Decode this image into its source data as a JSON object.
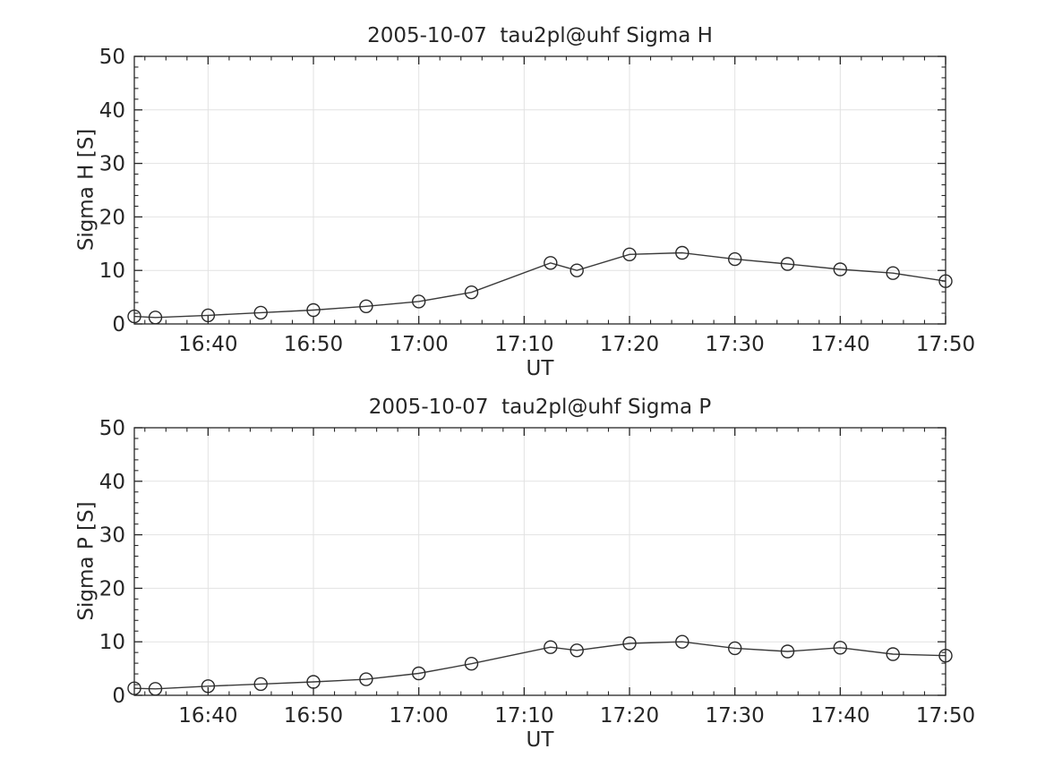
{
  "figure": {
    "background": "#ffffff",
    "colors": {
      "line": "#3a3a3a",
      "marker": "#2a2a2a",
      "grid": "#e2e2e2",
      "axis": "#262626",
      "text": "#262626"
    }
  },
  "chart_data": [
    {
      "type": "line",
      "title": "2005-10-07  tau2pl@uhf Sigma H",
      "xlabel": "UT",
      "ylabel": "Sigma H [S]",
      "ylim": [
        0,
        50
      ],
      "yticks": [
        0,
        10,
        20,
        30,
        40,
        50
      ],
      "y_minor_step": 2,
      "xlim_minutes": [
        993,
        1070
      ],
      "x_minor_step": 2,
      "grid": true,
      "legend": null,
      "marker": "circle-open",
      "xticks": [
        {
          "minute": 1000,
          "label": "16:40"
        },
        {
          "minute": 1010,
          "label": "16:50"
        },
        {
          "minute": 1020,
          "label": "17:00"
        },
        {
          "minute": 1030,
          "label": "17:10"
        },
        {
          "minute": 1040,
          "label": "17:20"
        },
        {
          "minute": 1050,
          "label": "17:30"
        },
        {
          "minute": 1060,
          "label": "17:40"
        },
        {
          "minute": 1070,
          "label": "17:50"
        }
      ],
      "x_times": [
        "16:33",
        "16:35",
        "16:40",
        "16:45",
        "16:50",
        "16:55",
        "17:00",
        "17:05",
        "17:12:30",
        "17:15",
        "17:20",
        "17:25",
        "17:30",
        "17:35",
        "17:40",
        "17:45",
        "17:50"
      ],
      "x_minutes": [
        993,
        995,
        1000,
        1005,
        1010,
        1015,
        1020,
        1025,
        1032.5,
        1035,
        1040,
        1045,
        1050,
        1055,
        1060,
        1065,
        1070
      ],
      "values": [
        1.4,
        1.2,
        1.6,
        2.1,
        2.6,
        3.3,
        4.2,
        5.9,
        11.4,
        10.0,
        13.0,
        13.3,
        12.1,
        11.2,
        10.2,
        9.5,
        8.0
      ]
    },
    {
      "type": "line",
      "title": "2005-10-07  tau2pl@uhf Sigma P",
      "xlabel": "UT",
      "ylabel": "Sigma P [S]",
      "ylim": [
        0,
        50
      ],
      "yticks": [
        0,
        10,
        20,
        30,
        40,
        50
      ],
      "y_minor_step": 2,
      "xlim_minutes": [
        993,
        1070
      ],
      "x_minor_step": 2,
      "grid": true,
      "legend": null,
      "marker": "circle-open",
      "xticks": [
        {
          "minute": 1000,
          "label": "16:40"
        },
        {
          "minute": 1010,
          "label": "16:50"
        },
        {
          "minute": 1020,
          "label": "17:00"
        },
        {
          "minute": 1030,
          "label": "17:10"
        },
        {
          "minute": 1040,
          "label": "17:20"
        },
        {
          "minute": 1050,
          "label": "17:30"
        },
        {
          "minute": 1060,
          "label": "17:40"
        },
        {
          "minute": 1070,
          "label": "17:50"
        }
      ],
      "x_times": [
        "16:33",
        "16:35",
        "16:40",
        "16:45",
        "16:50",
        "16:55",
        "17:00",
        "17:05",
        "17:12:30",
        "17:15",
        "17:20",
        "17:25",
        "17:30",
        "17:35",
        "17:40",
        "17:45",
        "17:50"
      ],
      "x_minutes": [
        993,
        995,
        1000,
        1005,
        1010,
        1015,
        1020,
        1025,
        1032.5,
        1035,
        1040,
        1045,
        1050,
        1055,
        1060,
        1065,
        1070
      ],
      "values": [
        1.3,
        1.2,
        1.7,
        2.1,
        2.5,
        3.0,
        4.1,
        5.9,
        9.0,
        8.4,
        9.7,
        10.0,
        8.8,
        8.2,
        8.9,
        7.7,
        7.4
      ]
    }
  ]
}
